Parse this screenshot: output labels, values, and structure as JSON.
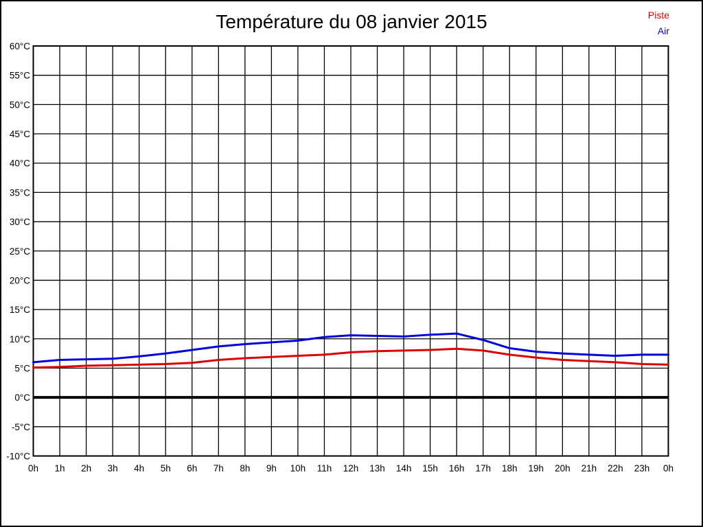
{
  "title": "Température du 08 janvier 2015",
  "legend": [
    {
      "label": "Piste",
      "color": "#dd0000"
    },
    {
      "label": "Air",
      "color": "#0000dd"
    }
  ],
  "chart_data": {
    "type": "line",
    "title": "Température du 08 janvier 2015",
    "xlabel": "",
    "ylabel": "",
    "ylim": [
      -10,
      60
    ],
    "grid": true,
    "zero_line_value": 0,
    "legend_position": "top-right",
    "x_labels": [
      "0h",
      "1h",
      "2h",
      "3h",
      "4h",
      "5h",
      "6h",
      "7h",
      "8h",
      "9h",
      "10h",
      "11h",
      "12h",
      "13h",
      "14h",
      "15h",
      "16h",
      "17h",
      "18h",
      "19h",
      "20h",
      "21h",
      "22h",
      "23h",
      "0h"
    ],
    "y_ticks": [
      {
        "value": 60,
        "label": "60°C"
      },
      {
        "value": 55,
        "label": "55°C"
      },
      {
        "value": 50,
        "label": "50°C"
      },
      {
        "value": 45,
        "label": "45°C"
      },
      {
        "value": 40,
        "label": "40°C"
      },
      {
        "value": 35,
        "label": "35°C"
      },
      {
        "value": 30,
        "label": "30°C"
      },
      {
        "value": 25,
        "label": "25°C"
      },
      {
        "value": 20,
        "label": "20°C"
      },
      {
        "value": 15,
        "label": "15°C"
      },
      {
        "value": 10,
        "label": "10°C"
      },
      {
        "value": 5,
        "label": "5°C"
      },
      {
        "value": 0,
        "label": "0°C"
      },
      {
        "value": -5,
        "label": "-5°C"
      },
      {
        "value": -10,
        "label": "-10°C"
      }
    ],
    "series": [
      {
        "name": "Piste",
        "color": "#dd0000",
        "values": [
          5.1,
          5.2,
          5.4,
          5.5,
          5.6,
          5.7,
          5.9,
          6.4,
          6.7,
          6.9,
          7.1,
          7.3,
          7.7,
          7.9,
          8.0,
          8.1,
          8.3,
          8.0,
          7.3,
          6.8,
          6.4,
          6.2,
          6.0,
          5.7,
          5.6
        ]
      },
      {
        "name": "Air",
        "color": "#0000dd",
        "values": [
          6.0,
          6.4,
          6.5,
          6.6,
          7.0,
          7.5,
          8.1,
          8.7,
          9.1,
          9.4,
          9.7,
          10.3,
          10.6,
          10.5,
          10.4,
          10.7,
          10.9,
          9.8,
          8.4,
          7.8,
          7.5,
          7.3,
          7.1,
          7.3,
          7.3
        ]
      }
    ]
  }
}
